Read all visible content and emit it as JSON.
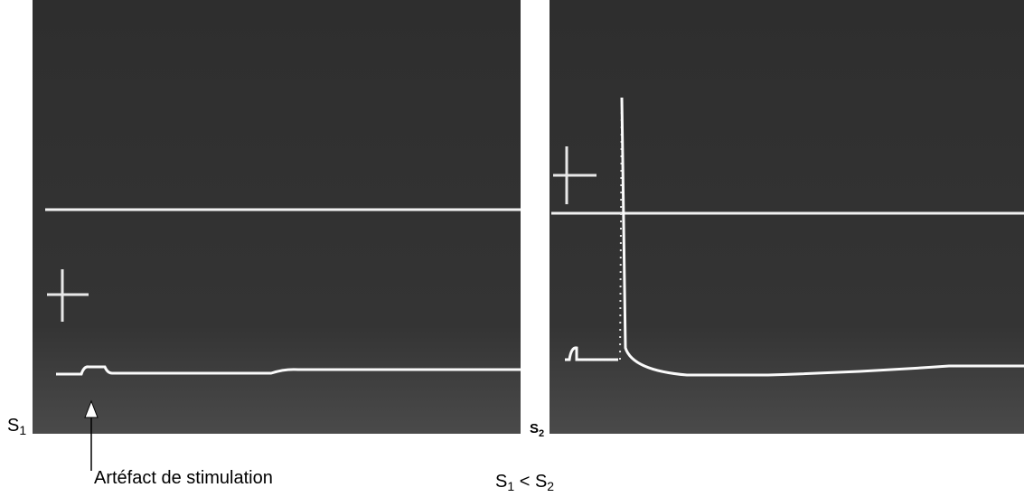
{
  "panels": [
    {
      "label": {
        "main": "S",
        "sub": "1"
      }
    },
    {
      "label": {
        "main": "S",
        "sub": "2"
      }
    }
  ],
  "annotation": "Artéfact de stimulation",
  "comparison": {
    "left": {
      "main": "S",
      "sub": "1"
    },
    "operator": "<",
    "right": {
      "main": "S",
      "sub": "2"
    }
  }
}
